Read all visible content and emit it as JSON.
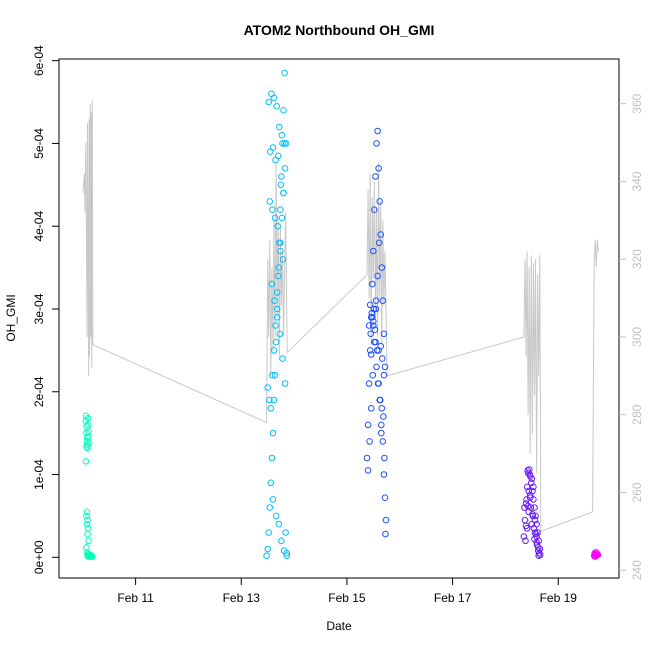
{
  "chart_data": {
    "type": "scatter",
    "title": "ATOM2 Northbound OH_GMI",
    "xlabel": "Date",
    "ylabel": "OH_GMI",
    "x_ticks": [
      "Feb 11",
      "Feb 13",
      "Feb 15",
      "Feb 17",
      "Feb 19"
    ],
    "x_tick_values": [
      11,
      13,
      15,
      17,
      19
    ],
    "xlim": [
      9.55,
      20.15
    ],
    "y_ticks": [
      "0e+00",
      "1e-04",
      "2e-04",
      "3e-04",
      "4e-04",
      "5e-04",
      "6e-04"
    ],
    "y_tick_values": [
      0,
      0.0001,
      0.0002,
      0.0003,
      0.0004,
      0.0005,
      0.0006
    ],
    "ylim": [
      -2.5e-05,
      0.000602
    ],
    "y2_ticks": [
      "240",
      "260",
      "280",
      "300",
      "320",
      "340",
      "360"
    ],
    "y2_tick_values": [
      240,
      260,
      280,
      300,
      320,
      340,
      360
    ],
    "y2lim": [
      238,
      371.5
    ],
    "series": [
      {
        "color": "#00ffbf",
        "x": [
          10.06,
          10.06,
          10.07,
          10.07,
          10.08,
          10.08,
          10.09,
          10.09,
          10.1,
          10.1,
          10.11,
          10.11,
          10.12,
          10.07,
          10.06,
          10.08,
          10.07,
          10.09,
          10.08,
          10.1,
          10.09,
          10.11,
          10.07,
          10.08,
          10.09,
          10.1,
          10.12,
          10.13,
          10.14,
          10.15,
          10.16,
          10.17,
          10.18,
          10.1,
          10.11
        ],
        "y": [
          0.000171,
          0.000165,
          0.000158,
          0.00015,
          0.000145,
          0.00014,
          0.000136,
          0.000132,
          0.000168,
          0.00016,
          0.000152,
          0.000146,
          0.000138,
          0.000134,
          0.000116,
          5.5e-05,
          5e-05,
          4.5e-05,
          4e-05,
          3.5e-05,
          2.8e-05,
          2e-05,
          1.2e-05,
          6e-06,
          3e-06,
          1e-06,
          2e-06,
          1e-06,
          3e-06,
          1e-06,
          2e-06,
          1e-06,
          1e-06,
          4e-06,
          3e-06
        ]
      },
      {
        "color": "#00bfff",
        "x": [
          13.48,
          13.5,
          13.52,
          13.54,
          13.56,
          13.58,
          13.6,
          13.62,
          13.64,
          13.66,
          13.68,
          13.7,
          13.72,
          13.74,
          13.76,
          13.78,
          13.8,
          13.82,
          13.84,
          13.86,
          13.5,
          13.53,
          13.56,
          13.59,
          13.62,
          13.65,
          13.68,
          13.71,
          13.74,
          13.77,
          13.8,
          13.83,
          13.85,
          13.55,
          13.6,
          13.65,
          13.7,
          13.75,
          13.8,
          13.52,
          13.57,
          13.62,
          13.67,
          13.72,
          13.77,
          13.82,
          13.54,
          13.59,
          13.64,
          13.69,
          13.74,
          13.79,
          13.58,
          13.63,
          13.68,
          13.73,
          13.78,
          13.83,
          13.6,
          13.66,
          13.71,
          13.76,
          13.81,
          13.86
        ],
        "y": [
          2e-06,
          1e-05,
          3e-05,
          6e-05,
          9e-05,
          0.00012,
          0.00015,
          0.00019,
          0.00022,
          0.00026,
          0.0003,
          0.00034,
          0.00038,
          0.00042,
          0.00046,
          0.0005,
          0.00054,
          0.000585,
          3e-05,
          5e-06,
          0.000205,
          0.00019,
          0.00018,
          0.00022,
          0.00025,
          0.00028,
          0.00032,
          0.00035,
          0.00038,
          0.00041,
          0.00044,
          0.00047,
          0.0005,
          0.00049,
          0.000495,
          0.00048,
          0.000485,
          0.00045,
          0.00044,
          0.00055,
          0.00056,
          0.000555,
          0.000545,
          0.00052,
          0.00051,
          0.0005,
          0.00043,
          0.00042,
          0.00041,
          0.0004,
          0.00037,
          0.00036,
          0.00033,
          0.00031,
          0.00029,
          0.00027,
          0.00024,
          0.00021,
          7e-05,
          5e-05,
          4e-05,
          2e-05,
          8e-06,
          2e-06
        ]
      },
      {
        "color": "#1f50ff",
        "x": [
          15.38,
          15.4,
          15.42,
          15.44,
          15.46,
          15.48,
          15.5,
          15.52,
          15.54,
          15.56,
          15.58,
          15.6,
          15.62,
          15.64,
          15.66,
          15.68,
          15.7,
          15.72,
          15.4,
          15.43,
          15.46,
          15.49,
          15.52,
          15.55,
          15.58,
          15.61,
          15.64,
          15.67,
          15.7,
          15.42,
          15.45,
          15.48,
          15.51,
          15.54,
          15.57,
          15.6,
          15.63,
          15.66,
          15.69,
          15.44,
          15.47,
          15.5,
          15.53,
          15.56,
          15.59,
          15.62,
          15.65,
          15.68,
          15.71,
          15.46,
          15.5,
          15.55,
          15.6,
          15.65,
          15.7,
          15.72,
          15.74,
          15.73
        ],
        "y": [
          0.00012,
          0.00016,
          0.00021,
          0.00025,
          0.00029,
          0.00033,
          0.00037,
          0.00042,
          0.00046,
          0.0005,
          0.000515,
          0.00047,
          0.00043,
          0.00039,
          0.00035,
          0.00031,
          0.00027,
          0.00023,
          0.000105,
          0.00014,
          0.00018,
          0.00022,
          0.00026,
          0.0003,
          0.00034,
          0.00038,
          0.000255,
          0.00024,
          0.00022,
          0.00028,
          0.00027,
          0.00029,
          0.0003,
          0.00026,
          0.00025,
          0.00021,
          0.00019,
          0.00018,
          0.00017,
          0.000305,
          0.000295,
          0.000285,
          0.000275,
          0.00023,
          0.00021,
          0.00019,
          0.00016,
          0.00014,
          0.00012,
          0.000245,
          0.00028,
          0.00031,
          0.00025,
          0.00015,
          0.0001,
          7.2e-05,
          4.5e-05,
          2.8e-05
        ]
      },
      {
        "color": "#6a1bff",
        "x": [
          18.35,
          18.37,
          18.39,
          18.41,
          18.43,
          18.45,
          18.47,
          18.49,
          18.51,
          18.53,
          18.55,
          18.57,
          18.59,
          18.61,
          18.63,
          18.65,
          18.38,
          18.41,
          18.44,
          18.47,
          18.5,
          18.53,
          18.56,
          18.59,
          18.62,
          18.36,
          18.4,
          18.44,
          18.48,
          18.52,
          18.56,
          18.6,
          18.64,
          18.42,
          18.46,
          18.5,
          18.54,
          18.58,
          18.62,
          18.66,
          18.39,
          18.43,
          18.47,
          18.51,
          18.55,
          18.59,
          18.63
        ],
        "y": [
          2.5e-05,
          4.5e-05,
          6.5e-05,
          8.5e-05,
          0.000102,
          0.000106,
          9.8e-05,
          9e-05,
          8e-05,
          7e-05,
          6e-05,
          5e-05,
          4e-05,
          3e-05,
          2e-05,
          1e-05,
          2e-05,
          3.5e-05,
          5.5e-05,
          7.5e-05,
          9.5e-05,
          8.5e-05,
          4.5e-05,
          2.5e-05,
          1.2e-05,
          6e-05,
          7e-05,
          8e-05,
          6e-05,
          5e-05,
          3e-05,
          1.5e-05,
          5e-06,
          0.000105,
          0.0001,
          4e-05,
          3.5e-05,
          2.8e-05,
          8e-06,
          3e-06,
          3.8e-05,
          6.2e-05,
          7.2e-05,
          5.2e-05,
          2.2e-05,
          1.8e-05,
          2e-06
        ]
      },
      {
        "color": "#ff00ff",
        "x": [
          19.68,
          19.7,
          19.72,
          19.74,
          19.69,
          19.71,
          19.73,
          19.75,
          19.7,
          19.72
        ],
        "y": [
          2e-06,
          4e-06,
          6e-06,
          3e-06,
          5e-06,
          2e-06,
          4e-06,
          3e-06,
          1e-06,
          2e-06
        ]
      }
    ],
    "secondary_line": {
      "color": "#c8c8c8",
      "x": [
        10.0,
        10.03,
        10.04,
        10.06,
        10.08,
        10.09,
        10.11,
        10.12,
        10.13,
        10.14,
        10.15,
        10.16,
        10.17,
        10.18,
        10.19,
        13.48,
        13.5,
        13.52,
        13.54,
        13.56,
        13.58,
        13.6,
        13.62,
        13.64,
        13.66,
        13.68,
        13.7,
        13.72,
        13.74,
        13.76,
        13.78,
        13.8,
        13.84,
        13.87,
        15.38,
        15.4,
        15.42,
        15.44,
        15.46,
        15.48,
        15.5,
        15.52,
        15.54,
        15.56,
        15.58,
        15.6,
        15.62,
        15.64,
        15.66,
        15.68,
        15.7,
        15.72,
        15.76,
        18.35,
        18.37,
        18.39,
        18.41,
        18.43,
        18.45,
        18.47,
        18.49,
        18.51,
        18.53,
        18.55,
        18.57,
        18.59,
        18.61,
        18.63,
        18.65,
        18.67,
        19.65,
        19.68,
        19.7,
        19.72,
        19.74,
        19.76
      ],
      "y": [
        337,
        342,
        332,
        350,
        300,
        355,
        290,
        356,
        295,
        360,
        300,
        358,
        292,
        361,
        298,
        278,
        320,
        300,
        325,
        290,
        318,
        296,
        330,
        300,
        345,
        305,
        330,
        295,
        328,
        308,
        322,
        300,
        332,
        296,
        316,
        338,
        310,
        342,
        298,
        336,
        315,
        340,
        305,
        333,
        300,
        345,
        310,
        335,
        298,
        330,
        308,
        322,
        290,
        300,
        320,
        295,
        322,
        280,
        318,
        270,
        321,
        275,
        319,
        285,
        320,
        265,
        316,
        290,
        321,
        250,
        255,
        320,
        325,
        318,
        325,
        322
      ]
    }
  }
}
